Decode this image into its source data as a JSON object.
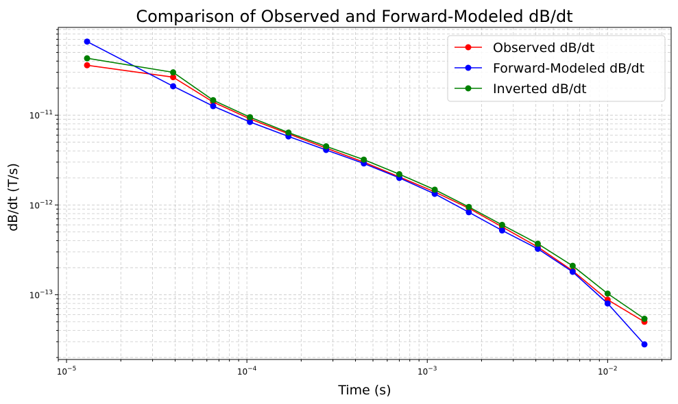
{
  "chart_data": {
    "type": "line",
    "title": "Comparison of Observed and Forward-Modeled dB/dt",
    "xlabel": "Time (s)",
    "ylabel": "dB/dt (T/s)",
    "x_scale": "log",
    "y_scale": "log",
    "xlim": [
      9e-06,
      0.0225
    ],
    "ylim": [
      1.9e-14,
      9.5e-11
    ],
    "grid": true,
    "grid_style": "dashed",
    "grid_which": "both",
    "legend_position": "top-right",
    "x_ticks": [
      {
        "base": "10",
        "exp": "−5",
        "value": 1e-05
      },
      {
        "base": "10",
        "exp": "−4",
        "value": 0.0001
      },
      {
        "base": "10",
        "exp": "−3",
        "value": 0.001
      },
      {
        "base": "10",
        "exp": "−2",
        "value": 0.01
      }
    ],
    "y_ticks": [
      {
        "base": "10",
        "exp": "−13",
        "value": 1e-13
      },
      {
        "base": "10",
        "exp": "−12",
        "value": 1e-12
      },
      {
        "base": "10",
        "exp": "−11",
        "value": 1e-11
      }
    ],
    "x": [
      1.3e-05,
      3.9e-05,
      6.5e-05,
      0.000104,
      0.00017,
      0.000275,
      0.000445,
      0.0007,
      0.0011,
      0.0017,
      0.0026,
      0.0041,
      0.0064,
      0.01,
      0.016
    ],
    "series": [
      {
        "name": "Observed dB/dt",
        "color": "#ff0000",
        "values": [
          3.6e-11,
          2.65e-11,
          1.4e-11,
          9.1e-12,
          6.2e-12,
          4.3e-12,
          3e-12,
          2.05e-12,
          1.4e-12,
          9.2e-13,
          5.7e-13,
          3.4e-13,
          1.85e-13,
          8.8e-14,
          5e-14
        ]
      },
      {
        "name": "Forward-Modeled dB/dt",
        "color": "#0000ff",
        "values": [
          6.6e-11,
          2.1e-11,
          1.26e-11,
          8.4e-12,
          5.8e-12,
          4.1e-12,
          2.9e-12,
          2e-12,
          1.33e-12,
          8.3e-13,
          5.2e-13,
          3.25e-13,
          1.8e-13,
          8e-14,
          2.8e-14
        ]
      },
      {
        "name": "Inverted dB/dt",
        "color": "#008000",
        "values": [
          4.3e-11,
          3e-11,
          1.47e-11,
          9.5e-12,
          6.4e-12,
          4.5e-12,
          3.2e-12,
          2.2e-12,
          1.48e-12,
          9.5e-13,
          6e-13,
          3.7e-13,
          2.1e-13,
          1.03e-13,
          5.4e-14
        ]
      }
    ]
  }
}
